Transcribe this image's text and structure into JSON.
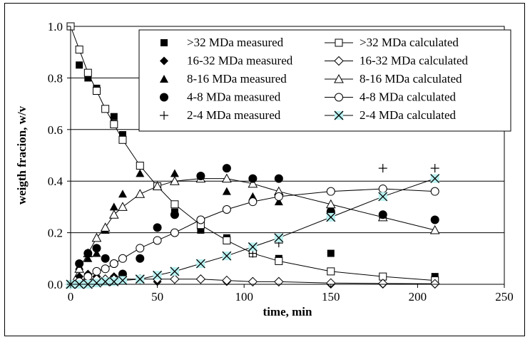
{
  "chart_data": {
    "type": "scatter",
    "xlabel": "time, min",
    "ylabel": "weigth fracion, w/v",
    "xlim": [
      0,
      250
    ],
    "ylim": [
      0,
      1.0
    ],
    "xticks": [
      "0",
      "50",
      "100",
      "150",
      "200",
      "250"
    ],
    "yticks": [
      "0.0",
      "0.2",
      "0.4",
      "0.6",
      "0.8",
      "1.0"
    ],
    "grid": "horizontal",
    "legend_position": "top-right",
    "series": [
      {
        "name": ">32 MDa measured",
        "marker": "square-filled",
        "line": false,
        "x": [
          0,
          5,
          10,
          15,
          20,
          25,
          30,
          40,
          50,
          60,
          75,
          90,
          120,
          150,
          210
        ],
        "y": [
          1.0,
          0.85,
          0.8,
          0.76,
          0.68,
          0.65,
          0.58,
          0.46,
          0.38,
          0.28,
          0.21,
          0.18,
          0.1,
          0.12,
          0.03
        ]
      },
      {
        "name": ">32 MDa calculated",
        "marker": "square-open",
        "line": true,
        "x": [
          0,
          5,
          10,
          15,
          20,
          25,
          30,
          40,
          50,
          60,
          75,
          90,
          105,
          120,
          150,
          180,
          210
        ],
        "y": [
          1.0,
          0.91,
          0.82,
          0.75,
          0.68,
          0.62,
          0.56,
          0.46,
          0.38,
          0.31,
          0.23,
          0.17,
          0.12,
          0.09,
          0.05,
          0.03,
          0.015
        ]
      },
      {
        "name": "16-32 MDa measured",
        "marker": "diamond-filled",
        "line": false,
        "x": [
          0,
          5,
          10,
          15,
          20,
          25,
          30,
          40,
          50,
          60,
          75,
          90,
          105,
          120,
          150,
          180,
          210
        ],
        "y": [
          0.0,
          0.03,
          0.04,
          0.03,
          0.02,
          0.03,
          0.03,
          0.02,
          0.01,
          0.02,
          0.02,
          0.01,
          0.01,
          0.01,
          0.0,
          0.0,
          0.0
        ]
      },
      {
        "name": "16-32 MDa calculated",
        "marker": "diamond-open",
        "line": true,
        "x": [
          0,
          5,
          10,
          15,
          20,
          25,
          30,
          40,
          50,
          60,
          75,
          90,
          105,
          120,
          150,
          180,
          210
        ],
        "y": [
          0.0,
          0.01,
          0.015,
          0.02,
          0.02,
          0.02,
          0.02,
          0.02,
          0.02,
          0.02,
          0.02,
          0.015,
          0.01,
          0.01,
          0.005,
          0.003,
          0.002
        ]
      },
      {
        "name": "8-16 MDa measured",
        "marker": "triangle-filled",
        "line": false,
        "x": [
          5,
          10,
          15,
          20,
          25,
          30,
          40,
          50,
          60,
          75,
          90,
          105,
          120,
          150,
          180
        ],
        "y": [
          0.07,
          0.1,
          0.12,
          0.21,
          0.3,
          0.35,
          0.43,
          0.38,
          0.43,
          0.41,
          0.36,
          0.34,
          0.32,
          0.3,
          0.27
        ]
      },
      {
        "name": "8-16 MDa calculated",
        "marker": "triangle-open",
        "line": true,
        "x": [
          0,
          5,
          10,
          15,
          20,
          25,
          30,
          40,
          50,
          60,
          75,
          90,
          105,
          120,
          150,
          180,
          210
        ],
        "y": [
          0.0,
          0.06,
          0.12,
          0.18,
          0.22,
          0.27,
          0.3,
          0.35,
          0.38,
          0.4,
          0.41,
          0.41,
          0.39,
          0.36,
          0.31,
          0.26,
          0.21
        ]
      },
      {
        "name": "4-8 MDa measured",
        "marker": "circle-filled",
        "line": false,
        "x": [
          5,
          10,
          15,
          20,
          25,
          30,
          40,
          50,
          60,
          75,
          90,
          105,
          120,
          150,
          180,
          210
        ],
        "y": [
          0.08,
          0.12,
          0.14,
          0.1,
          0.08,
          0.04,
          0.1,
          0.22,
          0.27,
          0.42,
          0.45,
          0.41,
          0.41,
          0.28,
          0.27,
          0.25
        ]
      },
      {
        "name": "4-8 MDa calculated",
        "marker": "circle-open",
        "line": true,
        "x": [
          0,
          5,
          10,
          15,
          20,
          25,
          30,
          40,
          50,
          60,
          75,
          90,
          105,
          120,
          150,
          180,
          210
        ],
        "y": [
          0.0,
          0.01,
          0.03,
          0.05,
          0.06,
          0.08,
          0.1,
          0.14,
          0.17,
          0.2,
          0.25,
          0.29,
          0.32,
          0.34,
          0.36,
          0.37,
          0.36
        ]
      },
      {
        "name": "2-4 MDa measured",
        "marker": "plus",
        "line": false,
        "x": [
          105,
          120,
          150,
          180,
          210
        ],
        "y": [
          0.12,
          0.16,
          0.26,
          0.45,
          0.45
        ]
      },
      {
        "name": "2-4 MDa calculated",
        "marker": "x-cyan",
        "line": true,
        "x": [
          0,
          5,
          10,
          15,
          20,
          25,
          30,
          40,
          50,
          60,
          75,
          90,
          105,
          120,
          150,
          180,
          210
        ],
        "y": [
          0.0,
          0.0,
          0.0,
          0.005,
          0.01,
          0.01,
          0.015,
          0.02,
          0.035,
          0.05,
          0.08,
          0.11,
          0.145,
          0.18,
          0.26,
          0.34,
          0.41
        ]
      }
    ]
  }
}
